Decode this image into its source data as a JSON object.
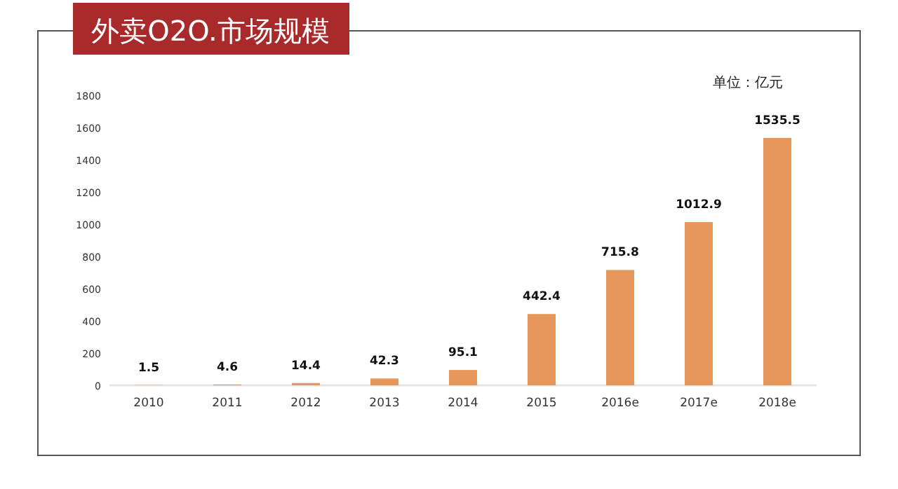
{
  "chart_data": {
    "type": "bar",
    "title": "外卖O2O.市场规模",
    "annotations": [
      "单位：亿元"
    ],
    "categories": [
      "2010",
      "2011",
      "2012",
      "2013",
      "2014",
      "2015",
      "2016e",
      "2017e",
      "2018e"
    ],
    "values": [
      1.5,
      4.6,
      14.4,
      42.3,
      95.1,
      442.4,
      715.8,
      1012.9,
      1535.5
    ],
    "color": "#e8975a",
    "ylim": [
      0,
      1800
    ],
    "yticks": [
      0,
      200,
      400,
      600,
      800,
      1000,
      1200,
      1400,
      1600,
      1800
    ],
    "data_labels": true
  }
}
